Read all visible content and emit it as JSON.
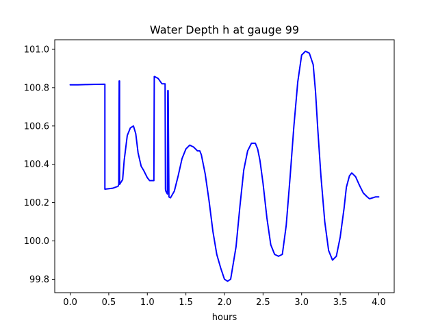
{
  "chart_data": {
    "type": "line",
    "title": "Water Depth h at gauge 99",
    "xlabel": "hours",
    "ylabel": "",
    "xlim": [
      -0.2,
      4.2
    ],
    "ylim": [
      99.73,
      101.05
    ],
    "xticks": [
      0.0,
      0.5,
      1.0,
      1.5,
      2.0,
      2.5,
      3.0,
      3.5,
      4.0
    ],
    "xtick_labels": [
      "0.0",
      "0.5",
      "1.0",
      "1.5",
      "2.0",
      "2.5",
      "3.0",
      "3.5",
      "4.0"
    ],
    "yticks": [
      99.8,
      100.0,
      100.2,
      100.4,
      100.6,
      100.8,
      101.0
    ],
    "ytick_labels": [
      "99.8",
      "100.0",
      "100.2",
      "100.4",
      "100.6",
      "100.8",
      "101.0"
    ],
    "grid": false,
    "legend": "none",
    "series": [
      {
        "color": "#0000ff",
        "x": [
          0.0,
          0.1,
          0.2,
          0.3,
          0.44,
          0.45,
          0.45,
          0.55,
          0.62,
          0.63,
          0.635,
          0.64,
          0.64,
          0.68,
          0.7,
          0.74,
          0.78,
          0.82,
          0.85,
          0.88,
          0.92,
          0.95,
          1.0,
          1.03,
          1.085,
          1.09,
          1.095,
          1.14,
          1.19,
          1.23,
          1.235,
          1.24,
          1.26,
          1.265,
          1.27,
          1.28,
          1.3,
          1.35,
          1.4,
          1.45,
          1.5,
          1.55,
          1.6,
          1.65,
          1.68,
          1.7,
          1.75,
          1.8,
          1.85,
          1.9,
          1.95,
          2.0,
          2.04,
          2.08,
          2.15,
          2.2,
          2.25,
          2.3,
          2.35,
          2.4,
          2.43,
          2.46,
          2.5,
          2.55,
          2.6,
          2.65,
          2.7,
          2.75,
          2.8,
          2.85,
          2.9,
          2.95,
          3.0,
          3.05,
          3.1,
          3.15,
          3.18,
          3.21,
          3.25,
          3.3,
          3.35,
          3.4,
          3.45,
          3.5,
          3.55,
          3.58,
          3.62,
          3.65,
          3.7,
          3.75,
          3.8,
          3.85,
          3.88,
          3.92,
          3.96,
          4.0
        ],
        "values": [
          100.815,
          100.815,
          100.816,
          100.817,
          100.818,
          100.818,
          100.27,
          100.275,
          100.285,
          100.295,
          100.835,
          100.835,
          100.295,
          100.32,
          100.42,
          100.55,
          100.59,
          100.6,
          100.56,
          100.46,
          100.39,
          100.37,
          100.33,
          100.315,
          100.315,
          100.858,
          100.858,
          100.848,
          100.82,
          100.82,
          100.27,
          100.26,
          100.245,
          100.785,
          100.785,
          100.23,
          100.225,
          100.26,
          100.34,
          100.43,
          100.48,
          100.5,
          100.49,
          100.47,
          100.47,
          100.45,
          100.35,
          100.21,
          100.05,
          99.93,
          99.86,
          99.8,
          99.79,
          99.8,
          99.97,
          100.18,
          100.37,
          100.47,
          100.51,
          100.51,
          100.48,
          100.42,
          100.3,
          100.12,
          99.98,
          99.93,
          99.92,
          99.93,
          100.08,
          100.33,
          100.6,
          100.83,
          100.97,
          100.99,
          100.98,
          100.92,
          100.78,
          100.58,
          100.34,
          100.1,
          99.95,
          99.9,
          99.92,
          100.02,
          100.17,
          100.28,
          100.34,
          100.355,
          100.335,
          100.29,
          100.25,
          100.23,
          100.22,
          100.225,
          100.23,
          100.23
        ]
      }
    ]
  }
}
